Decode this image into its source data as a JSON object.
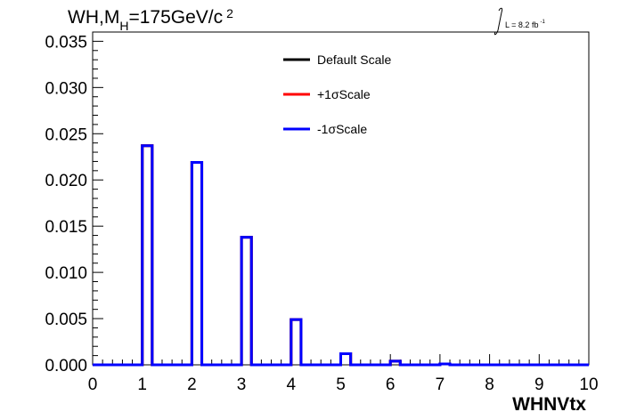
{
  "chart_data": {
    "type": "line",
    "title_main": "WH,M",
    "title_sub": "H",
    "title_rest": "=175GeV/c",
    "title_sup": "2",
    "lumi_prefix": "L = 8.2 fb",
    "lumi_sup": "-1",
    "xlabel": "WHNVtx",
    "ylabel": "",
    "xlim": [
      0,
      10
    ],
    "ylim": [
      0,
      0.036
    ],
    "x_ticks": [
      "0",
      "1",
      "2",
      "3",
      "4",
      "5",
      "6",
      "7",
      "8",
      "9",
      "10"
    ],
    "y_ticks": [
      "0.000",
      "0.005",
      "0.010",
      "0.015",
      "0.020",
      "0.025",
      "0.030",
      "0.035"
    ],
    "bins": {
      "edges_start": 0,
      "bin_width": 0.2
    },
    "series": [
      {
        "name": "Default Scale",
        "color": "#000000",
        "peaks": [
          [
            1,
            0.0237
          ],
          [
            2,
            0.0219
          ],
          [
            3,
            0.0138
          ],
          [
            4,
            0.0049
          ],
          [
            5,
            0.0012
          ],
          [
            6,
            0.0004
          ],
          [
            7,
            0.0001
          ]
        ]
      },
      {
        "name": "+1σScale",
        "color": "#ff0000",
        "peaks": [
          [
            1,
            0.0237
          ],
          [
            2,
            0.0219
          ],
          [
            3,
            0.0138
          ],
          [
            4,
            0.0049
          ],
          [
            5,
            0.0012
          ],
          [
            6,
            0.0004
          ],
          [
            7,
            0.0001
          ]
        ]
      },
      {
        "name": "-1σScale",
        "color": "#0000ff",
        "peaks": [
          [
            1,
            0.0237
          ],
          [
            2,
            0.0219
          ],
          [
            3,
            0.0138
          ],
          [
            4,
            0.0049
          ],
          [
            5,
            0.0012
          ],
          [
            6,
            0.0004
          ],
          [
            7,
            0.0001
          ]
        ]
      }
    ],
    "legend_position": "top-center",
    "grid": false
  }
}
